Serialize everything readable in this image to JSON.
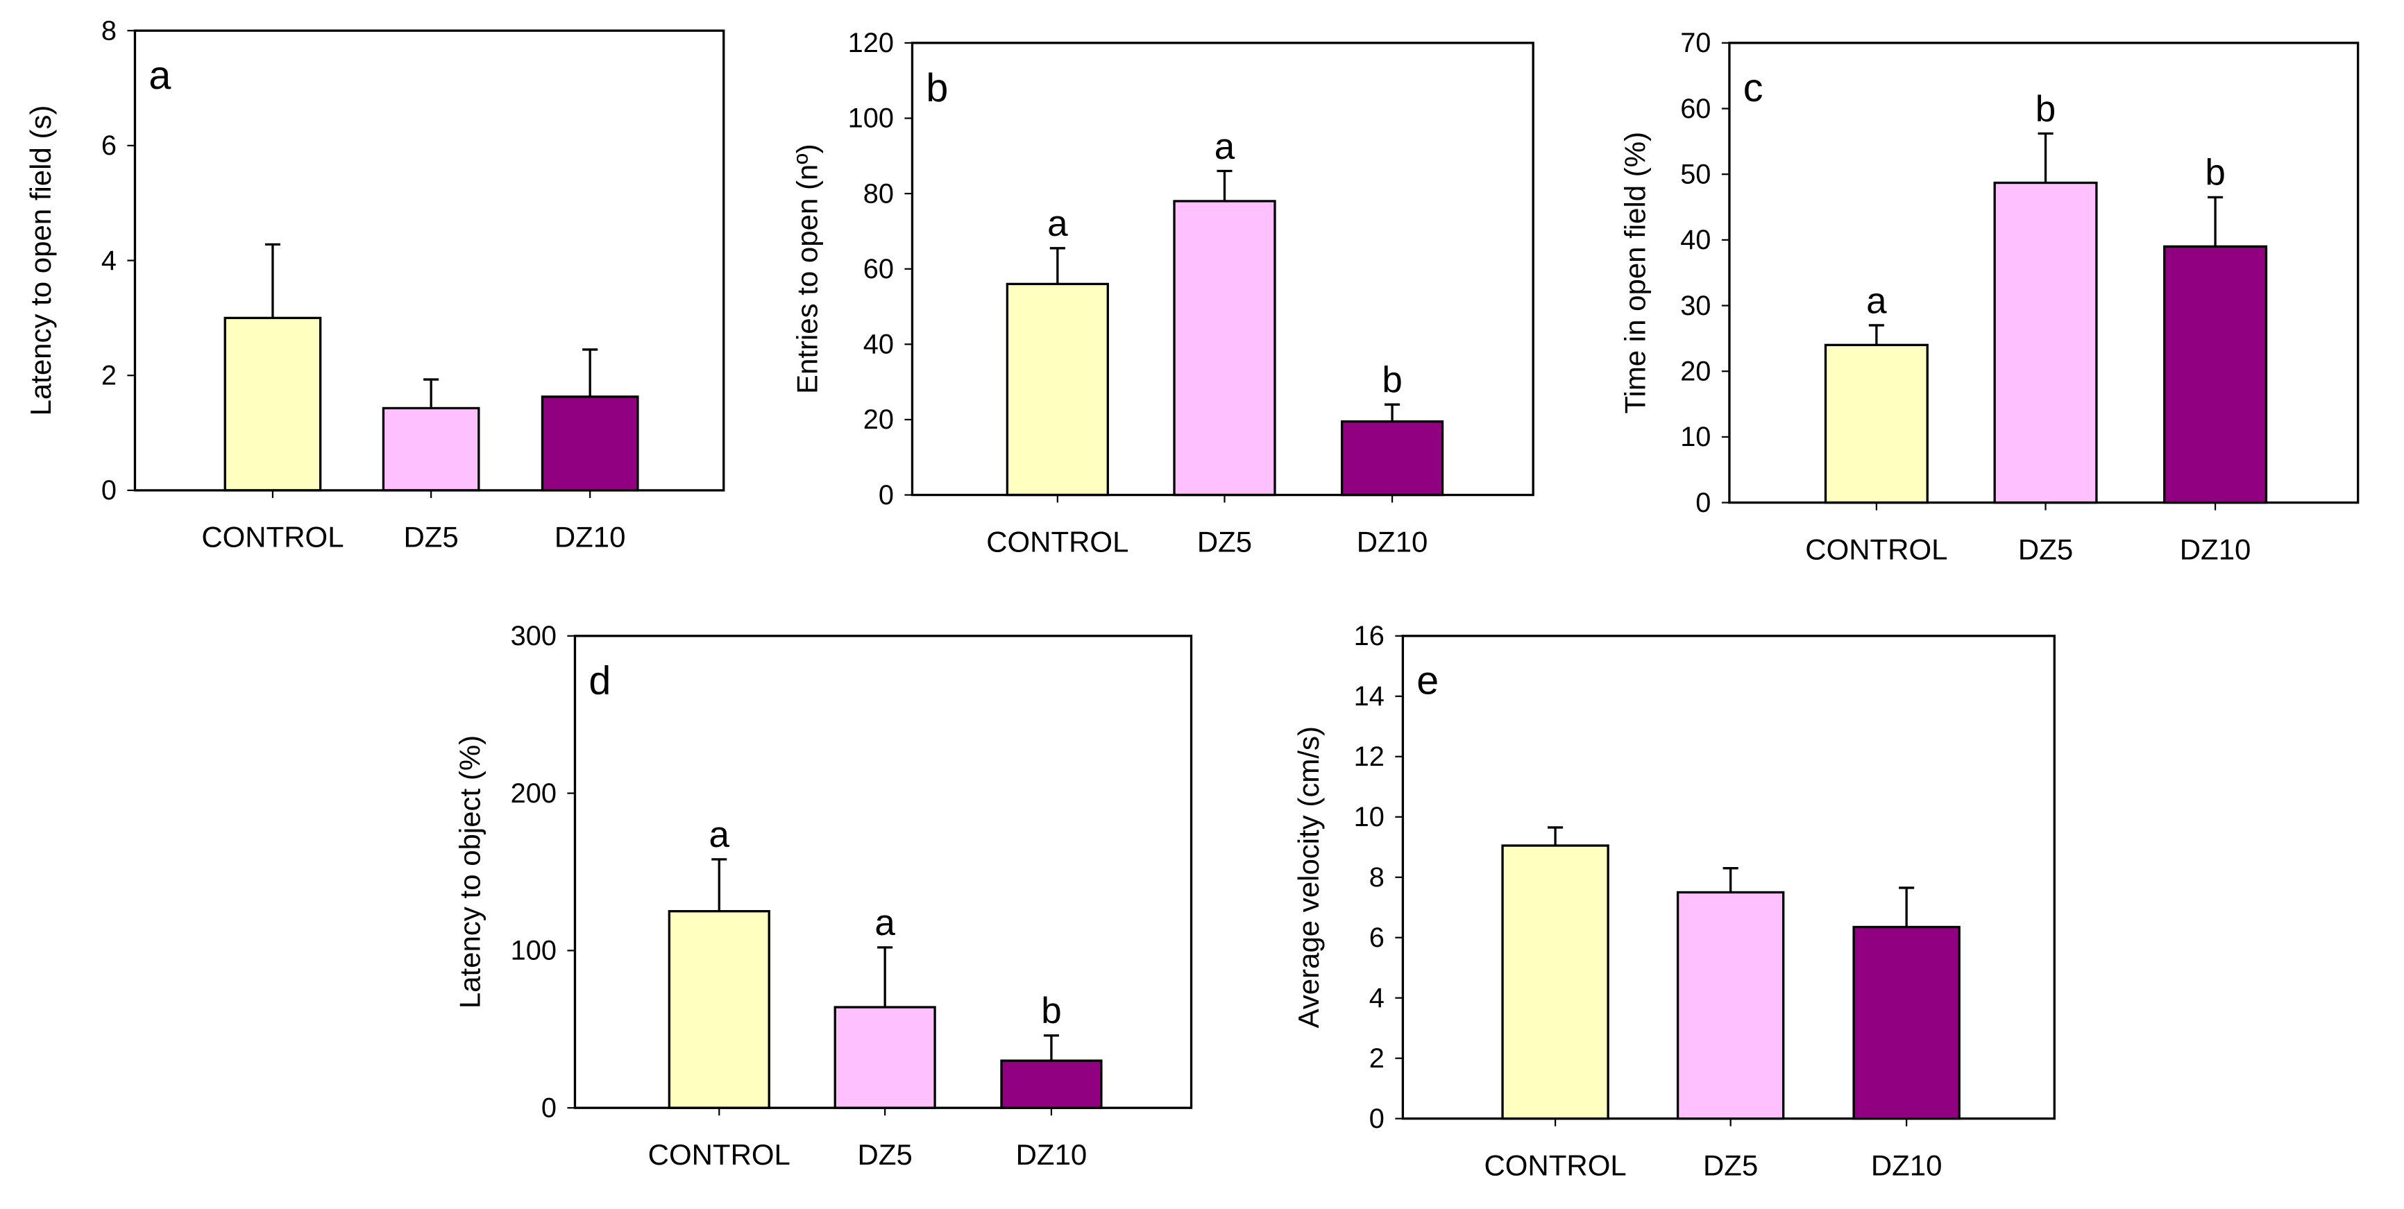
{
  "chart_data": [
    {
      "type": "bar",
      "panel": "a",
      "ylabel": "Latency to open field (s)",
      "ylim": [
        0,
        8
      ],
      "yticks": [
        0,
        2,
        4,
        6,
        8
      ],
      "categories": [
        "CONTROL",
        "DZ5",
        "DZ10"
      ],
      "values": [
        3.0,
        1.43,
        1.63
      ],
      "error_upper": [
        4.28,
        1.93,
        2.45
      ],
      "significance": [
        "",
        "",
        ""
      ]
    },
    {
      "type": "bar",
      "panel": "b",
      "ylabel": "Entries to open (nº)",
      "ylim": [
        0,
        120
      ],
      "yticks": [
        0,
        20,
        40,
        60,
        80,
        100,
        120
      ],
      "categories": [
        "CONTROL",
        "DZ5",
        "DZ10"
      ],
      "values": [
        56,
        78,
        19.5
      ],
      "error_upper": [
        65.5,
        86,
        24
      ],
      "significance": [
        "a",
        "a",
        "b"
      ]
    },
    {
      "type": "bar",
      "panel": "c",
      "ylabel": "Time in open field (%)",
      "ylim": [
        0,
        70
      ],
      "yticks": [
        0,
        10,
        20,
        30,
        40,
        50,
        60,
        70
      ],
      "categories": [
        "CONTROL",
        "DZ5",
        "DZ10"
      ],
      "values": [
        24,
        48.7,
        39
      ],
      "error_upper": [
        27,
        56.2,
        46.5
      ],
      "significance": [
        "a",
        "b",
        "b"
      ]
    },
    {
      "type": "bar",
      "panel": "d",
      "ylabel": "Latency to object (%)",
      "ylim": [
        0,
        300
      ],
      "yticks": [
        0,
        100,
        200,
        300
      ],
      "categories": [
        "CONTROL",
        "DZ5",
        "DZ10"
      ],
      "values": [
        125,
        64,
        30
      ],
      "error_upper": [
        158,
        102,
        46
      ],
      "significance": [
        "a",
        "a",
        "b"
      ]
    },
    {
      "type": "bar",
      "panel": "e",
      "ylabel": "Average velocity (cm/s)",
      "ylim": [
        0,
        16
      ],
      "yticks": [
        0,
        2,
        4,
        6,
        8,
        10,
        12,
        14,
        16
      ],
      "categories": [
        "CONTROL",
        "DZ5",
        "DZ10"
      ],
      "values": [
        9.05,
        7.5,
        6.35
      ],
      "error_upper": [
        9.65,
        8.3,
        7.65
      ],
      "significance": [
        "",
        "",
        ""
      ]
    }
  ],
  "colors": {
    "CONTROL": "#FFFFC0",
    "DZ5": "#FFC0FF",
    "DZ10": "#900080"
  }
}
